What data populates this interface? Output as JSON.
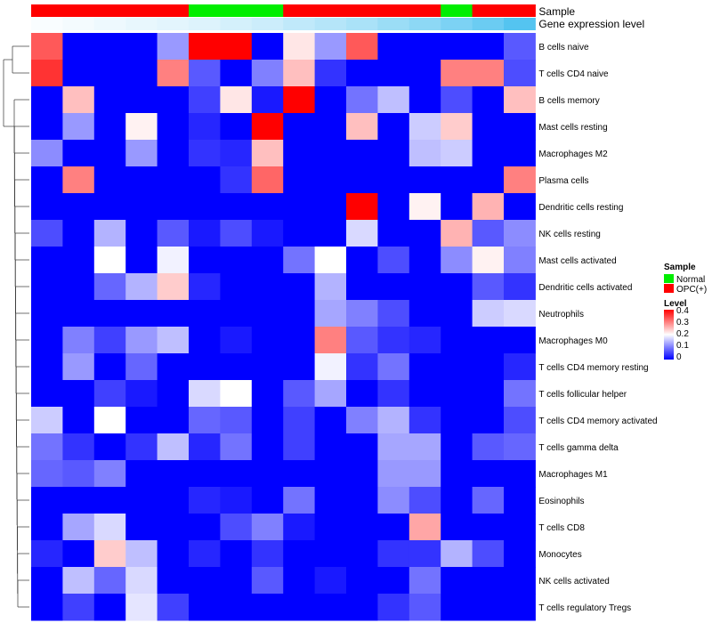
{
  "chart_data": {
    "type": "heatmap",
    "annotation_tracks": [
      {
        "name": "Sample",
        "values": [
          "OPC(+)",
          "OPC(+)",
          "OPC(+)",
          "OPC(+)",
          "OPC(+)",
          "Normal",
          "Normal",
          "Normal",
          "OPC(+)",
          "OPC(+)",
          "OPC(+)",
          "OPC(+)",
          "OPC(+)",
          "Normal",
          "OPC(+)",
          "OPC(+)"
        ]
      },
      {
        "name": "Gene expression level",
        "values": [
          0.02,
          0.04,
          0.06,
          0.08,
          0.1,
          0.12,
          0.15,
          0.18,
          0.22,
          0.26,
          0.3,
          0.35,
          0.4,
          0.46,
          0.52,
          0.6
        ]
      }
    ],
    "rows": [
      "B cells naive",
      "T cells CD4 naive",
      "B cells memory",
      "Mast cells resting",
      "Macrophages M2",
      "Plasma cells",
      "Dendritic cells resting",
      "NK cells resting",
      "Mast cells activated",
      "Dendritic cells activated",
      "Neutrophils",
      "Macrophages M0",
      "T cells CD4 memory resting",
      "T cells follicular helper",
      "T cells CD4 memory activated",
      "T cells gamma delta",
      "Macrophages M1",
      "Eosinophils",
      "T cells CD8",
      "Monocytes",
      "NK cells activated",
      "T cells regulatory  Tregs"
    ],
    "values": [
      [
        0.33,
        0,
        0,
        0,
        0.12,
        0.4,
        0.4,
        0,
        0.22,
        0.12,
        0.33,
        0,
        0,
        0,
        0,
        0.07
      ],
      [
        0.36,
        0,
        0,
        0,
        0.3,
        0.07,
        0,
        0.1,
        0.25,
        0.04,
        0,
        0,
        0,
        0.3,
        0.3,
        0.06
      ],
      [
        0,
        0.25,
        0,
        0,
        0,
        0.05,
        0.22,
        0.02,
        0.4,
        0,
        0.09,
        0.15,
        0,
        0.06,
        0,
        0.25
      ],
      [
        0,
        0.12,
        0,
        0.21,
        0,
        0.03,
        0,
        0.4,
        0,
        0,
        0.25,
        0,
        0.16,
        0.24,
        0,
        0
      ],
      [
        0.11,
        0,
        0,
        0.12,
        0,
        0.04,
        0.03,
        0.25,
        0,
        0,
        0,
        0,
        0.15,
        0.16,
        0,
        0
      ],
      [
        0,
        0.3,
        0,
        0,
        0,
        0,
        0.04,
        0.32,
        0,
        0,
        0,
        0,
        0,
        0,
        0,
        0.3
      ],
      [
        0,
        0,
        0,
        0,
        0,
        0,
        0,
        0,
        0,
        0,
        0.4,
        0,
        0.21,
        0,
        0.26,
        0
      ],
      [
        0.06,
        0,
        0.14,
        0,
        0.07,
        0.02,
        0.06,
        0.02,
        0,
        0,
        0.17,
        0,
        0,
        0.26,
        0.07,
        0.11
      ],
      [
        0,
        0,
        0.2,
        0,
        0.19,
        0,
        0,
        0,
        0.09,
        0.2,
        0,
        0.06,
        0,
        0.11,
        0.21,
        0.1
      ],
      [
        0,
        0,
        0.08,
        0.14,
        0.24,
        0.03,
        0,
        0,
        0,
        0.14,
        0,
        0,
        0,
        0,
        0.07,
        0.04
      ],
      [
        0,
        0,
        0,
        0,
        0,
        0,
        0,
        0,
        0,
        0.13,
        0.1,
        0.06,
        0,
        0,
        0.16,
        0.17
      ],
      [
        0,
        0.1,
        0.05,
        0.12,
        0.15,
        0,
        0.02,
        0,
        0,
        0.3,
        0.07,
        0.04,
        0.03,
        0,
        0,
        0
      ],
      [
        0,
        0.12,
        0,
        0.08,
        0,
        0,
        0,
        0,
        0,
        0.19,
        0.04,
        0.09,
        0,
        0,
        0,
        0.03
      ],
      [
        0,
        0,
        0.05,
        0.02,
        0,
        0.17,
        0.2,
        0,
        0.07,
        0.13,
        0,
        0.04,
        0,
        0,
        0,
        0.09
      ],
      [
        0.16,
        0,
        0.2,
        0,
        0,
        0.08,
        0.07,
        0,
        0.05,
        0,
        0.1,
        0.14,
        0.04,
        0,
        0,
        0.06
      ],
      [
        0.09,
        0.04,
        0,
        0.04,
        0.15,
        0.03,
        0.09,
        0,
        0.05,
        0,
        0,
        0.13,
        0.13,
        0,
        0.07,
        0.08
      ],
      [
        0.08,
        0.07,
        0.1,
        0,
        0,
        0,
        0,
        0,
        0,
        0,
        0,
        0.12,
        0.12,
        0,
        0,
        0
      ],
      [
        0,
        0,
        0,
        0,
        0,
        0.03,
        0.02,
        0,
        0.09,
        0,
        0,
        0.11,
        0.06,
        0,
        0.08,
        0
      ],
      [
        0,
        0.13,
        0.17,
        0,
        0,
        0,
        0.06,
        0.1,
        0.02,
        0,
        0,
        0,
        0.27,
        0,
        0,
        0
      ],
      [
        0.03,
        0,
        0.24,
        0.15,
        0,
        0.03,
        0,
        0.04,
        0,
        0,
        0,
        0.04,
        0.04,
        0.14,
        0.06,
        0
      ],
      [
        0,
        0.15,
        0.08,
        0.17,
        0,
        0,
        0,
        0.07,
        0,
        0.02,
        0,
        0,
        0.09,
        0,
        0,
        0
      ],
      [
        0,
        0.05,
        0,
        0.18,
        0.05,
        0,
        0,
        0,
        0,
        0,
        0,
        0.04,
        0.07,
        0,
        0,
        0
      ]
    ],
    "legend": [
      {
        "title": "Sample",
        "entries": [
          {
            "label": "Normal",
            "color": "#00ee00"
          },
          {
            "label": "OPC(+)",
            "color": "#ff0000"
          }
        ]
      },
      {
        "title": "Level",
        "range": [
          0,
          0.4
        ],
        "ticks": [
          "0.4",
          "0.3",
          "0.2",
          "0.1",
          "0"
        ],
        "colors": [
          "#0000ff",
          "#ffffff",
          "#ff0000"
        ]
      }
    ],
    "legend_position": "right",
    "row_dendrogram": "left",
    "grid": false
  }
}
